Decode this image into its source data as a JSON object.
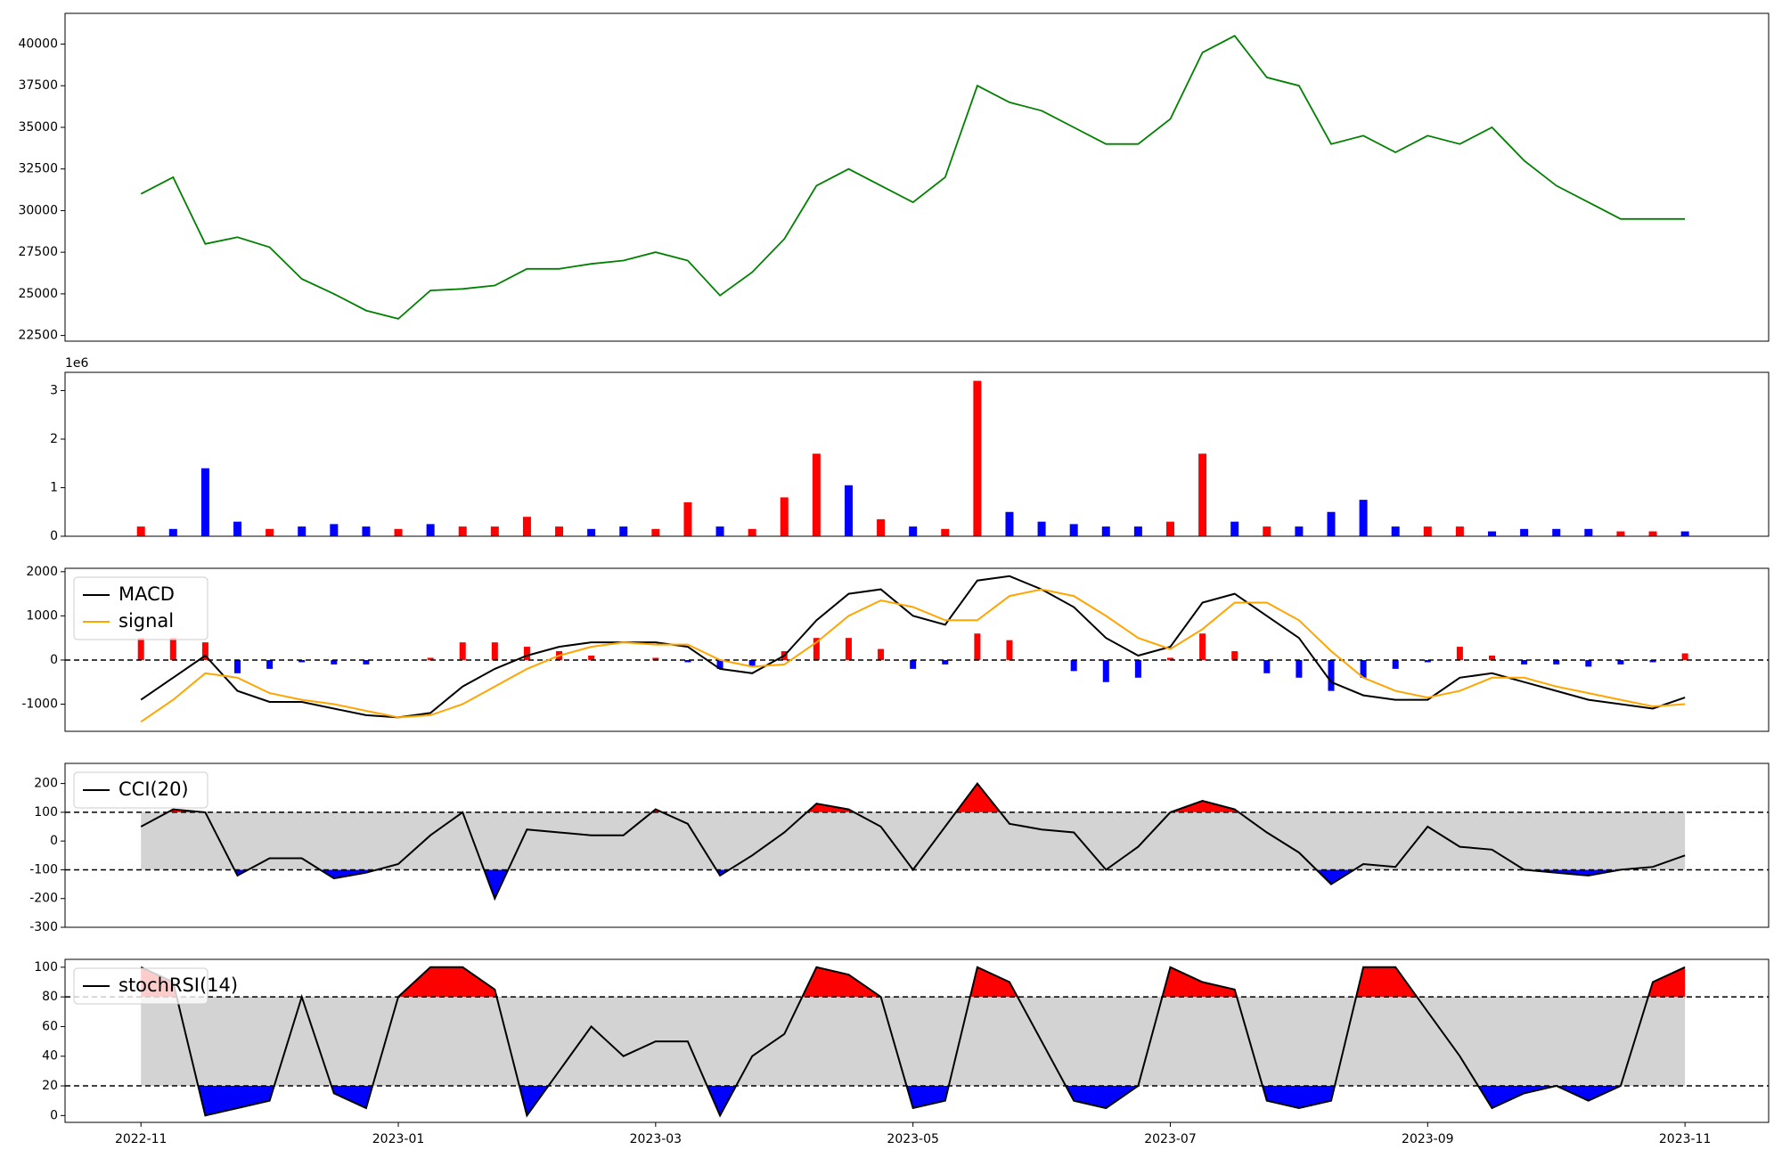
{
  "x_axis": {
    "x": [
      0,
      0.25,
      0.5,
      0.75,
      1,
      1.25,
      1.5,
      1.75,
      2,
      2.25,
      2.5,
      2.75,
      3,
      3.25,
      3.5,
      3.75,
      4,
      4.25,
      4.5,
      4.75,
      5,
      5.25,
      5.5,
      5.75,
      6,
      6.25,
      6.5,
      6.75,
      7,
      7.25,
      7.5,
      7.75,
      8,
      8.25,
      8.5,
      8.75,
      9,
      9.25,
      9.5,
      9.75,
      10,
      10.25,
      10.5,
      10.75,
      11,
      11.25,
      11.5,
      11.75,
      12
    ],
    "xlim": [
      -0.59,
      12.65
    ],
    "xticks": [
      {
        "value": 0,
        "label": "2022-11"
      },
      {
        "value": 2,
        "label": "2023-01"
      },
      {
        "value": 4,
        "label": "2023-03"
      },
      {
        "value": 6,
        "label": "2023-05"
      },
      {
        "value": 8,
        "label": "2023-07"
      },
      {
        "value": 10,
        "label": "2023-09"
      },
      {
        "value": 12,
        "label": "2023-11"
      }
    ]
  },
  "chart_data": [
    {
      "type": "line",
      "ylim": [
        22158,
        41846
      ],
      "yticks": [
        22500,
        25000,
        27500,
        30000,
        32500,
        35000,
        37500,
        40000
      ],
      "series": [
        {
          "color": "#008000",
          "values": [
            31000,
            32000,
            28000,
            28400,
            27800,
            25900,
            25000,
            24000,
            23500,
            25200,
            25300,
            25500,
            26500,
            26500,
            26800,
            27000,
            27500,
            27000,
            24900,
            26300,
            28300,
            31500,
            32500,
            31500,
            30500,
            32000,
            37500,
            36500,
            36000,
            35000,
            34000,
            34000,
            35500,
            39500,
            40500,
            38000,
            37500,
            34000,
            34500,
            33500,
            34500,
            34000,
            35000,
            33000,
            31500,
            30500,
            29500,
            29500,
            29500
          ]
        }
      ]
    },
    {
      "type": "bar",
      "ylim": [
        0,
        3.375
      ],
      "yticks": [
        0,
        1,
        2,
        3
      ],
      "offset_label": "1e6",
      "values": [
        0.2,
        0.15,
        1.4,
        0.3,
        0.15,
        0.2,
        0.25,
        0.2,
        0.15,
        0.25,
        0.2,
        0.2,
        0.4,
        0.2,
        0.15,
        0.2,
        0.15,
        0.7,
        0.2,
        0.15,
        0.8,
        1.7,
        1.05,
        0.35,
        0.2,
        0.15,
        3.2,
        0.5,
        0.3,
        0.25,
        0.2,
        0.2,
        0.3,
        1.7,
        0.3,
        0.2,
        0.2,
        0.5,
        0.75,
        0.2,
        0.2,
        0.2,
        0.1,
        0.15,
        0.15,
        0.15,
        0.1,
        0.1,
        0.1
      ],
      "colors": [
        "red",
        "blue",
        "blue",
        "blue",
        "red",
        "blue",
        "blue",
        "blue",
        "red",
        "blue",
        "red",
        "red",
        "red",
        "red",
        "blue",
        "blue",
        "red",
        "red",
        "blue",
        "red",
        "red",
        "red",
        "blue",
        "red",
        "blue",
        "red",
        "red",
        "blue",
        "blue",
        "blue",
        "blue",
        "blue",
        "red",
        "red",
        "blue",
        "red",
        "blue",
        "blue",
        "blue",
        "blue",
        "red",
        "red",
        "blue",
        "blue",
        "blue",
        "blue",
        "red",
        "red",
        "blue"
      ]
    },
    {
      "type": "macd",
      "ylim": [
        -1615,
        2077
      ],
      "yticks": [
        -1000,
        0,
        1000,
        2000
      ],
      "hlines": [
        0
      ],
      "pos_color": "red",
      "neg_color": "blue",
      "histogram": [
        500,
        500,
        400,
        -300,
        -200,
        -50,
        -100,
        -100,
        0,
        50,
        400,
        400,
        300,
        200,
        100,
        0,
        50,
        -50,
        -200,
        -150,
        200,
        500,
        500,
        250,
        -200,
        -100,
        600,
        450,
        0,
        -250,
        -500,
        -400,
        50,
        600,
        200,
        -300,
        -400,
        -700,
        -400,
        -200,
        -50,
        300,
        100,
        -100,
        -100,
        -150,
        -100,
        -50,
        150
      ],
      "series": [
        {
          "name": "MACD",
          "color": "#000000",
          "values": [
            -900,
            -400,
            100,
            -700,
            -950,
            -950,
            -1100,
            -1250,
            -1300,
            -1200,
            -600,
            -200,
            100,
            300,
            400,
            400,
            400,
            300,
            -200,
            -300,
            100,
            900,
            1500,
            1600,
            1000,
            800,
            1800,
            1900,
            1600,
            1200,
            500,
            100,
            300,
            1300,
            1500,
            1000,
            500,
            -500,
            -800,
            -900,
            -900,
            -400,
            -300,
            -500,
            -700,
            -900,
            -1000,
            -1100,
            -850
          ]
        },
        {
          "name": "signal",
          "color": "#ffa500",
          "values": [
            -1400,
            -900,
            -300,
            -400,
            -750,
            -900,
            -1000,
            -1150,
            -1300,
            -1250,
            -1000,
            -600,
            -200,
            100,
            300,
            400,
            350,
            350,
            0,
            -150,
            -100,
            400,
            1000,
            1350,
            1200,
            900,
            900,
            1450,
            1600,
            1450,
            1000,
            500,
            250,
            700,
            1300,
            1300,
            900,
            200,
            -400,
            -700,
            -850,
            -700,
            -400,
            -400,
            -600,
            -750,
            -900,
            -1050,
            -1000
          ]
        }
      ]
    },
    {
      "type": "oscillator",
      "ylim": [
        -300,
        270
      ],
      "yticks": [
        -300,
        -200,
        -100,
        0,
        100,
        200
      ],
      "thresholds": [
        -100,
        100
      ],
      "band_color": "#d3d3d3",
      "hi_color": "red",
      "lo_color": "blue",
      "series": [
        {
          "name": "CCI(20)",
          "color": "#000000",
          "values": [
            50,
            110,
            100,
            -120,
            -60,
            -60,
            -130,
            -110,
            -80,
            20,
            100,
            -200,
            40,
            30,
            20,
            20,
            110,
            60,
            -120,
            -50,
            30,
            130,
            110,
            50,
            -100,
            50,
            200,
            60,
            40,
            30,
            -100,
            -20,
            100,
            140,
            110,
            30,
            -40,
            -150,
            -80,
            -90,
            50,
            -20,
            -30,
            -100,
            -110,
            -120,
            -100,
            -90,
            -50
          ]
        }
      ]
    },
    {
      "type": "oscillator",
      "ylim": [
        -4.6,
        105.3
      ],
      "yticks": [
        0,
        20,
        40,
        60,
        80,
        100
      ],
      "thresholds": [
        20,
        80
      ],
      "band_color": "#d3d3d3",
      "hi_color": "red",
      "lo_color": "blue",
      "series": [
        {
          "name": "stochRSI(14)",
          "color": "#000000",
          "values": [
            100,
            90,
            0,
            5,
            10,
            80,
            15,
            5,
            80,
            100,
            100,
            85,
            0,
            30,
            60,
            40,
            50,
            50,
            0,
            40,
            55,
            100,
            95,
            80,
            5,
            10,
            100,
            90,
            50,
            10,
            5,
            20,
            100,
            90,
            85,
            10,
            5,
            10,
            100,
            100,
            70,
            40,
            5,
            15,
            20,
            10,
            20,
            90,
            100
          ]
        }
      ]
    }
  ]
}
